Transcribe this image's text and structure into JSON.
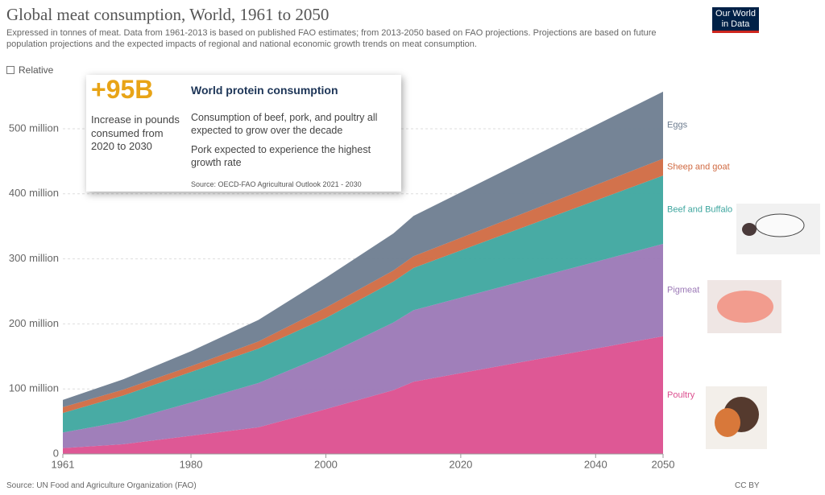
{
  "chart_data": {
    "type": "stacked-area",
    "title": "Global meat consumption, World, 1961 to 2050",
    "subtitle": "Expressed in tonnes of meat. Data from 1961-2013 is based on published FAO estimates; from 2013-2050 based on FAO projections. Projections are based on future population projections and the expected impacts of regional and national economic growth trends on meat consumption.",
    "toggle": "Relative",
    "logo": [
      "Our World",
      "in Data"
    ],
    "x": [
      1961,
      1970,
      1980,
      1990,
      2000,
      2010,
      2013,
      2050
    ],
    "series": [
      {
        "name": "Poultry",
        "color": "#dc4f8f",
        "values": [
          9,
          15,
          28,
          41,
          69,
          98,
          111,
          181
        ]
      },
      {
        "name": "Pigmeat",
        "color": "#9b78b6",
        "values": [
          24,
          35,
          51,
          68,
          83,
          104,
          110,
          142
        ]
      },
      {
        "name": "Beef and Buffalo",
        "color": "#3ea69f",
        "values": [
          30,
          40,
          47,
          53,
          57,
          63,
          65,
          105
        ]
      },
      {
        "name": "Sheep and goat",
        "color": "#d06a42",
        "values": [
          9,
          9,
          9,
          11,
          16,
          17,
          18,
          26
        ]
      },
      {
        "name": "Eggs",
        "color": "#6e7d90",
        "values": [
          11,
          16,
          23,
          33,
          46,
          57,
          62,
          103
        ]
      }
    ],
    "xlim": [
      1961,
      2050
    ],
    "xticks": [
      1961,
      1980,
      2000,
      2020,
      2040,
      2050
    ],
    "ylim": [
      0,
      570
    ],
    "yticks": [
      0,
      {
        "value": 100,
        "label": "100 million"
      },
      {
        "value": 200,
        "label": "200 million"
      },
      {
        "value": 300,
        "label": "300 million"
      },
      {
        "value": 400,
        "label": "400 million"
      },
      {
        "value": 500,
        "label": "500 million"
      }
    ],
    "grid": true,
    "source": "Source: UN Food and Agriculture Organization (FAO)",
    "license": "CC BY",
    "callout": {
      "figure": "+95B",
      "figure_caption": "Increase in pounds consumed from 2020 to 2030",
      "heading": "World protein consumption",
      "points": [
        "Consumption of beef, pork, and poultry all expected to grow over the decade",
        "Pork expected to experience the highest growth rate"
      ],
      "source": "Source: OECD-FAO Agricultural Outlook 2021 - 2030"
    }
  }
}
